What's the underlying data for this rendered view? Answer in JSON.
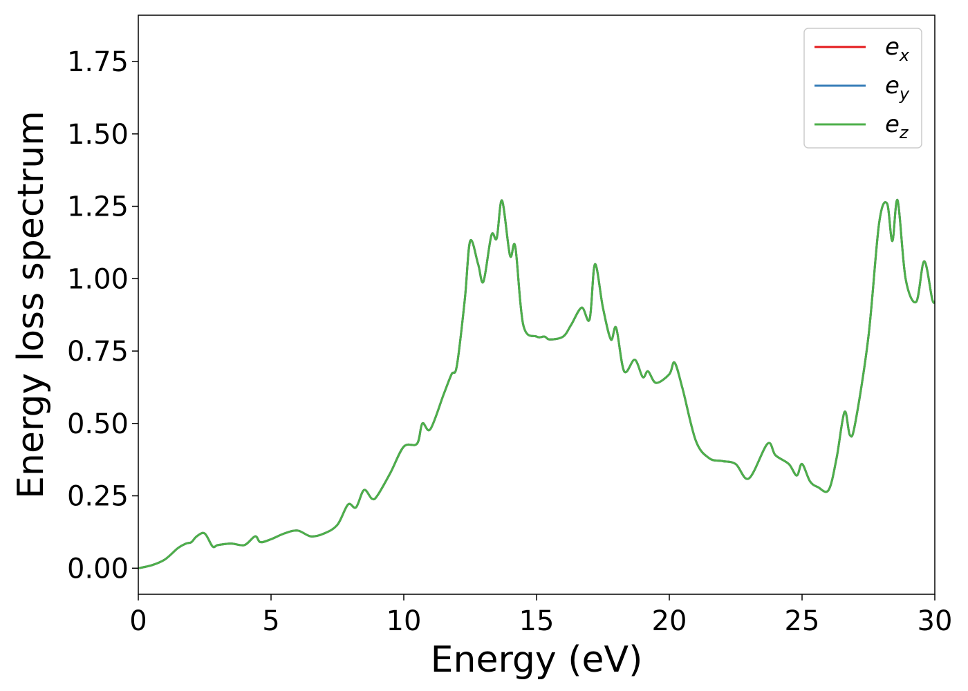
{
  "chart_data": {
    "type": "line",
    "xlabel": "Energy (eV)",
    "ylabel": "Energy loss spectrum",
    "xlim": [
      0,
      30
    ],
    "ylim": [
      -0.09,
      1.91
    ],
    "xticks": [
      0,
      5,
      10,
      15,
      20,
      25,
      30
    ],
    "xtick_labels": [
      "0",
      "5",
      "10",
      "15",
      "20",
      "25",
      "30"
    ],
    "yticks": [
      0,
      0.25,
      0.5,
      0.75,
      1.0,
      1.25,
      1.5,
      1.75
    ],
    "ytick_labels": [
      "0.00",
      "0.25",
      "0.50",
      "0.75",
      "1.00",
      "1.25",
      "1.50",
      "1.75"
    ],
    "grid": false,
    "legend_position": "top-right",
    "x": [
      0.0,
      0.5,
      1.0,
      1.5,
      1.8,
      2.0,
      2.2,
      2.5,
      2.8,
      3.0,
      3.5,
      4.0,
      4.4,
      4.6,
      5.0,
      5.5,
      6.0,
      6.5,
      7.0,
      7.5,
      7.9,
      8.2,
      8.5,
      8.8,
      9.0,
      9.5,
      10.0,
      10.5,
      10.7,
      11.0,
      11.5,
      11.8,
      12.0,
      12.3,
      12.5,
      12.8,
      13.0,
      13.3,
      13.5,
      13.7,
      14.0,
      14.2,
      14.5,
      15.0,
      15.3,
      15.5,
      16.0,
      16.3,
      16.7,
      17.0,
      17.2,
      17.5,
      17.8,
      18.0,
      18.3,
      18.7,
      19.0,
      19.2,
      19.5,
      20.0,
      20.2,
      20.5,
      21.0,
      21.5,
      22.0,
      22.5,
      23.0,
      23.7,
      24.0,
      24.5,
      24.8,
      25.0,
      25.3,
      25.6,
      26.0,
      26.3,
      26.6,
      26.8,
      27.0,
      27.5,
      27.9,
      28.2,
      28.4,
      28.6,
      28.9,
      29.3,
      29.6,
      29.9,
      30.0
    ],
    "series": [
      {
        "name": "ex",
        "color": "#e41a1c",
        "values": [
          0.0,
          0.01,
          0.03,
          0.07,
          0.085,
          0.09,
          0.11,
          0.12,
          0.075,
          0.08,
          0.085,
          0.08,
          0.11,
          0.09,
          0.1,
          0.12,
          0.13,
          0.11,
          0.12,
          0.15,
          0.22,
          0.21,
          0.27,
          0.24,
          0.25,
          0.33,
          0.42,
          0.43,
          0.5,
          0.48,
          0.6,
          0.67,
          0.7,
          0.93,
          1.13,
          1.05,
          0.99,
          1.15,
          1.14,
          1.27,
          1.08,
          1.11,
          0.84,
          0.8,
          0.8,
          0.79,
          0.8,
          0.84,
          0.9,
          0.86,
          1.05,
          0.9,
          0.79,
          0.83,
          0.68,
          0.72,
          0.66,
          0.68,
          0.64,
          0.67,
          0.71,
          0.62,
          0.44,
          0.38,
          0.37,
          0.36,
          0.31,
          0.43,
          0.39,
          0.36,
          0.32,
          0.36,
          0.3,
          0.28,
          0.27,
          0.38,
          0.54,
          0.46,
          0.5,
          0.8,
          1.19,
          1.26,
          1.13,
          1.27,
          1.0,
          0.92,
          1.06,
          0.93,
          0.92
        ]
      },
      {
        "name": "ey",
        "color": "#377eb8",
        "values": [
          0.0,
          0.01,
          0.03,
          0.07,
          0.085,
          0.09,
          0.11,
          0.12,
          0.075,
          0.08,
          0.085,
          0.08,
          0.11,
          0.09,
          0.1,
          0.12,
          0.13,
          0.11,
          0.12,
          0.15,
          0.22,
          0.21,
          0.27,
          0.24,
          0.25,
          0.33,
          0.42,
          0.43,
          0.5,
          0.48,
          0.6,
          0.67,
          0.7,
          0.93,
          1.13,
          1.05,
          0.99,
          1.15,
          1.14,
          1.27,
          1.08,
          1.11,
          0.84,
          0.8,
          0.8,
          0.79,
          0.8,
          0.84,
          0.9,
          0.86,
          1.05,
          0.9,
          0.79,
          0.83,
          0.68,
          0.72,
          0.66,
          0.68,
          0.64,
          0.67,
          0.71,
          0.62,
          0.44,
          0.38,
          0.37,
          0.36,
          0.31,
          0.43,
          0.39,
          0.36,
          0.32,
          0.36,
          0.3,
          0.28,
          0.27,
          0.38,
          0.54,
          0.46,
          0.5,
          0.8,
          1.19,
          1.26,
          1.13,
          1.27,
          1.0,
          0.92,
          1.06,
          0.93,
          0.92
        ]
      },
      {
        "name": "ez",
        "color": "#4daf4a",
        "values": [
          0.0,
          0.01,
          0.03,
          0.07,
          0.085,
          0.09,
          0.11,
          0.12,
          0.075,
          0.08,
          0.085,
          0.08,
          0.11,
          0.09,
          0.1,
          0.12,
          0.13,
          0.11,
          0.12,
          0.15,
          0.22,
          0.21,
          0.27,
          0.24,
          0.25,
          0.33,
          0.42,
          0.43,
          0.5,
          0.48,
          0.6,
          0.67,
          0.7,
          0.93,
          1.13,
          1.05,
          0.99,
          1.15,
          1.14,
          1.27,
          1.08,
          1.11,
          0.84,
          0.8,
          0.8,
          0.79,
          0.8,
          0.84,
          0.9,
          0.86,
          1.05,
          0.9,
          0.79,
          0.83,
          0.68,
          0.72,
          0.66,
          0.68,
          0.64,
          0.67,
          0.71,
          0.62,
          0.44,
          0.38,
          0.37,
          0.36,
          0.31,
          0.43,
          0.39,
          0.36,
          0.32,
          0.36,
          0.3,
          0.28,
          0.27,
          0.38,
          0.54,
          0.46,
          0.5,
          0.8,
          1.19,
          1.26,
          1.13,
          1.27,
          1.0,
          0.92,
          1.06,
          0.93,
          0.92
        ]
      }
    ],
    "legend": [
      {
        "base": "e",
        "sub": "x",
        "color": "#e41a1c"
      },
      {
        "base": "e",
        "sub": "y",
        "color": "#377eb8"
      },
      {
        "base": "e",
        "sub": "z",
        "color": "#4daf4a"
      }
    ]
  }
}
